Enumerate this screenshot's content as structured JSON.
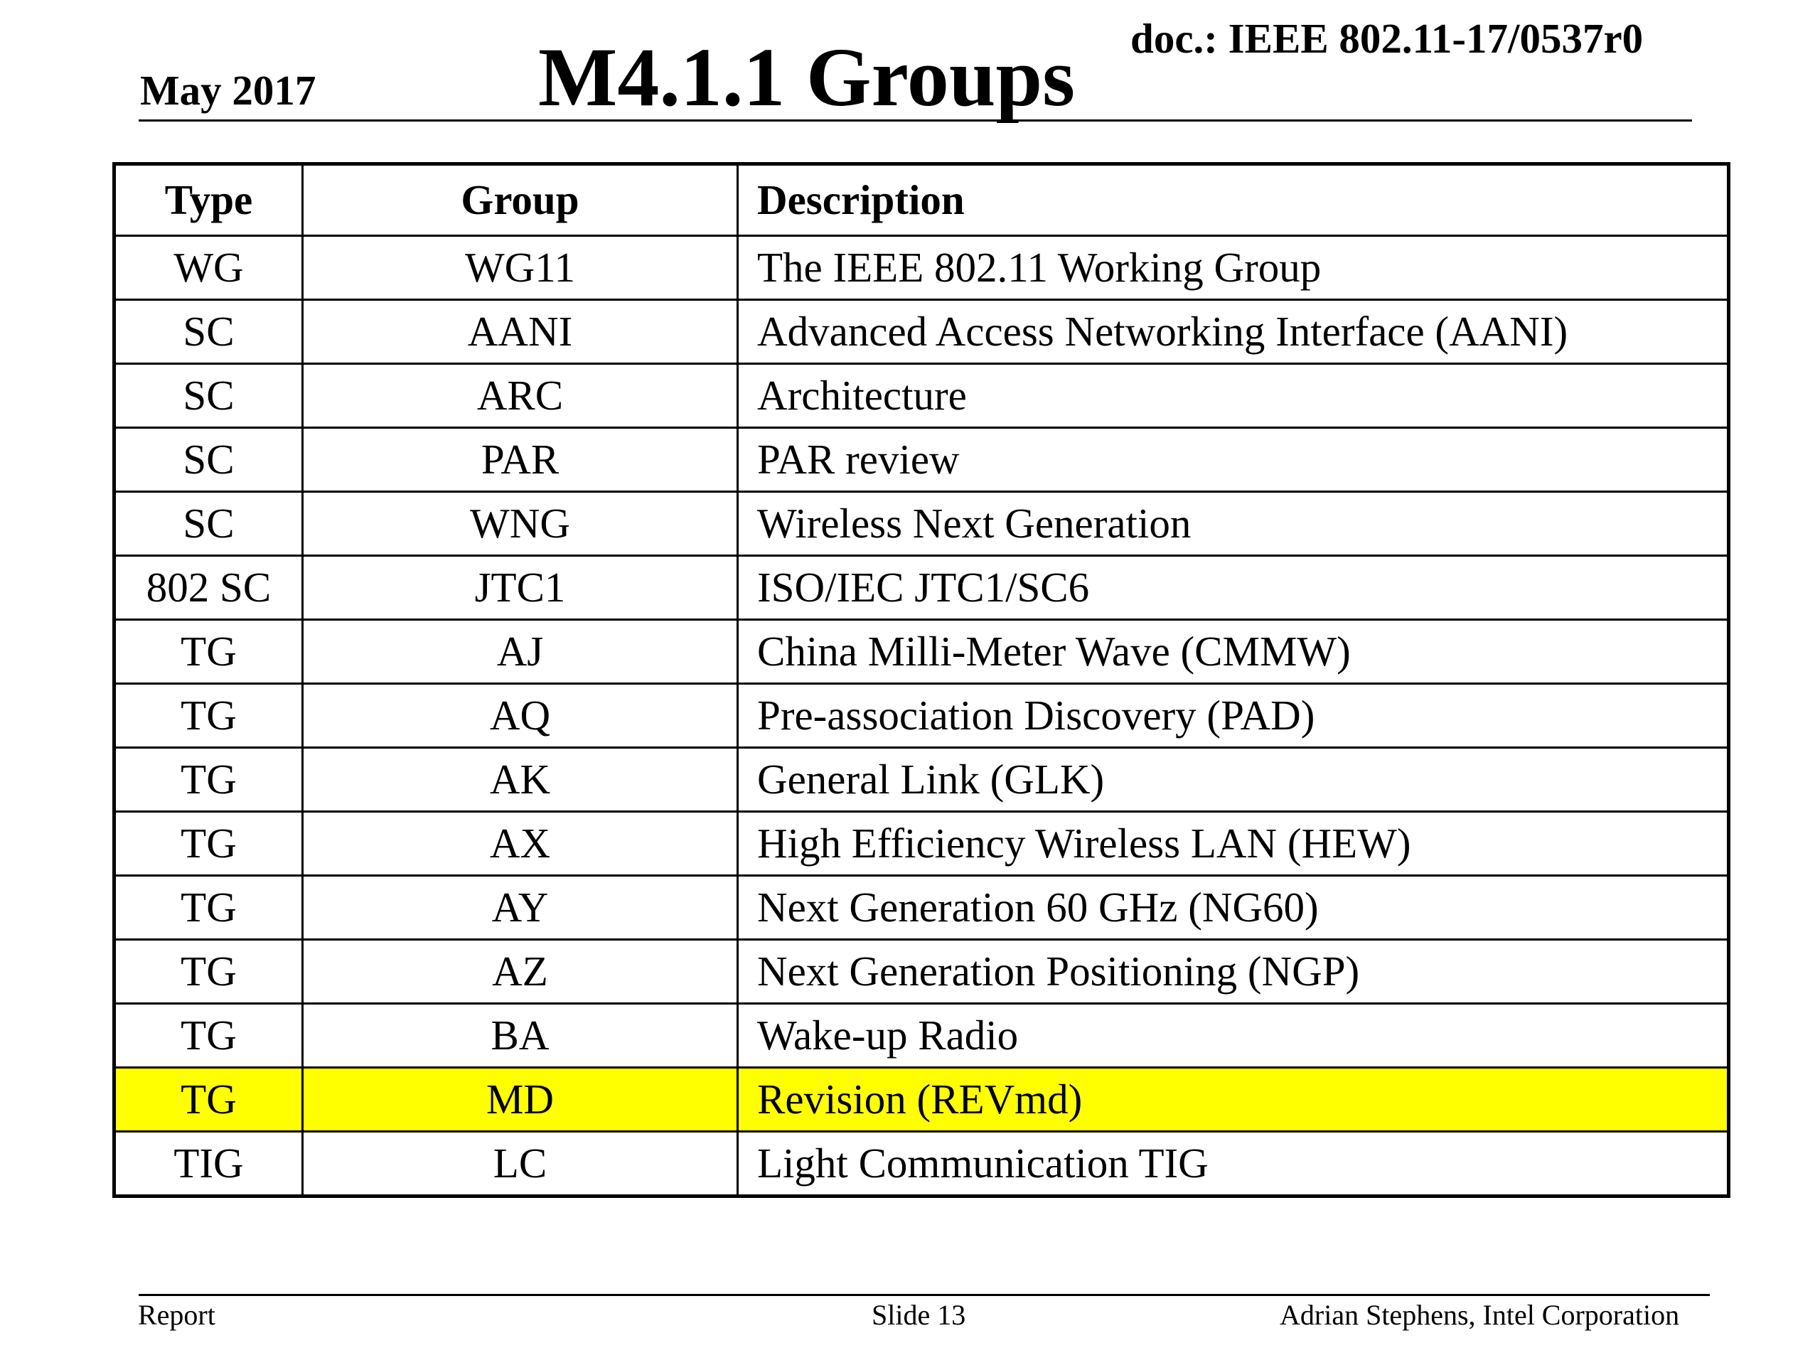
{
  "header": {
    "date": "May 2017",
    "title": "M4.1.1 Groups",
    "doc": "doc.: IEEE 802.11-17/0537r0"
  },
  "table": {
    "columns": [
      "Type",
      "Group",
      "Description"
    ],
    "rows": [
      {
        "type": "WG",
        "group": "WG11",
        "description": "The IEEE 802.11 Working Group",
        "highlight": false
      },
      {
        "type": "SC",
        "group": "AANI",
        "description": "Advanced Access Networking Interface (AANI)",
        "highlight": false
      },
      {
        "type": "SC",
        "group": "ARC",
        "description": "Architecture",
        "highlight": false
      },
      {
        "type": "SC",
        "group": "PAR",
        "description": "PAR review",
        "highlight": false
      },
      {
        "type": "SC",
        "group": "WNG",
        "description": "Wireless Next Generation",
        "highlight": false
      },
      {
        "type": "802 SC",
        "group": "JTC1",
        "description": "ISO/IEC JTC1/SC6",
        "highlight": false
      },
      {
        "type": "TG",
        "group": "AJ",
        "description": "China Milli-Meter Wave (CMMW)",
        "highlight": false
      },
      {
        "type": "TG",
        "group": "AQ",
        "description": "Pre-association Discovery (PAD)",
        "highlight": false
      },
      {
        "type": "TG",
        "group": "AK",
        "description": "General Link (GLK)",
        "highlight": false
      },
      {
        "type": "TG",
        "group": "AX",
        "description": "High Efficiency Wireless LAN (HEW)",
        "highlight": false
      },
      {
        "type": "TG",
        "group": "AY",
        "description": "Next Generation 60 GHz (NG60)",
        "highlight": false
      },
      {
        "type": "TG",
        "group": "AZ",
        "description": "Next Generation Positioning (NGP)",
        "highlight": false
      },
      {
        "type": "TG",
        "group": "BA",
        "description": "Wake-up Radio",
        "highlight": false
      },
      {
        "type": "TG",
        "group": "MD",
        "description": "Revision (REVmd)",
        "highlight": true
      },
      {
        "type": "TIG",
        "group": "LC",
        "description": "Light Communication TIG",
        "highlight": false
      }
    ]
  },
  "colors": {
    "highlight": "#ffff00"
  },
  "footer": {
    "left": "Report",
    "center": "Slide 13",
    "right": "Adrian Stephens, Intel Corporation"
  }
}
